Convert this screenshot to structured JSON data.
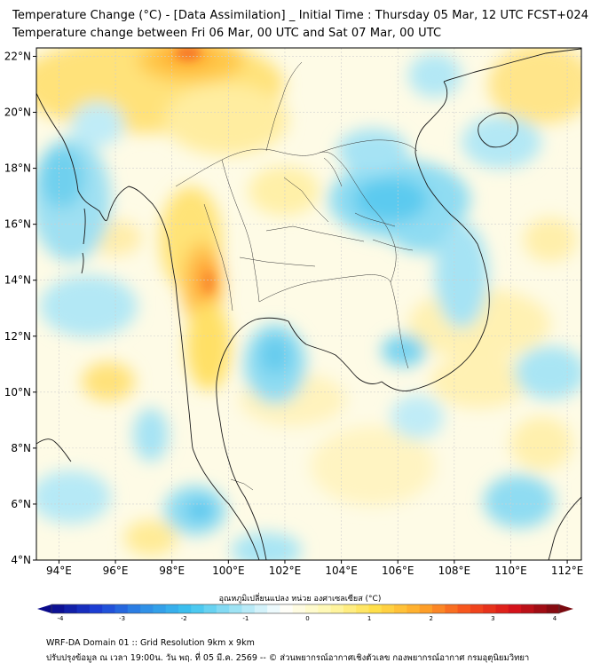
{
  "title": {
    "line1": "Temperature Change (°C) - [Data Assimilation] _ Initial Time : Thursday 05 Mar, 12 UTC FCST+024",
    "line2": "Temperature change between Fri 06 Mar, 00 UTC and Sat 07 Mar, 00 UTC"
  },
  "map": {
    "lat_labels": [
      "22°N",
      "20°N",
      "18°N",
      "16°N",
      "14°N",
      "12°N",
      "10°N",
      "8°N",
      "6°N",
      "4°N"
    ],
    "lat_values": [
      22,
      20,
      18,
      16,
      14,
      12,
      10,
      8,
      6,
      4
    ],
    "lon_labels": [
      "94°E",
      "96°E",
      "98°E",
      "100°E",
      "102°E",
      "104°E",
      "106°E",
      "108°E",
      "110°E",
      "112°E"
    ],
    "lon_values": [
      94,
      96,
      98,
      100,
      102,
      104,
      106,
      108,
      110,
      112
    ],
    "lat_range": [
      4,
      22.3
    ],
    "lon_range": [
      93.2,
      112.5
    ]
  },
  "colorbar": {
    "label": "อุณหภูมิเปลี่ยนแปลง หน่วย องศาเซลเซียส (°C)",
    "ticks": [
      "-4",
      "-3",
      "-2",
      "-1",
      "0",
      "1",
      "2",
      "3",
      "4"
    ],
    "min": -4,
    "max": 4,
    "colors": [
      "#0a0a8a",
      "#1d3fd6",
      "#2f8ee6",
      "#3cc4ef",
      "#9fe3f4",
      "#ffffff",
      "#fff8b0",
      "#ffe04a",
      "#ffa82a",
      "#f6501c",
      "#d8121a",
      "#7a0a10"
    ]
  },
  "footer": {
    "line1": "WRF-DA Domain 01 :: Grid Resolution 9km x 9km",
    "line2": "ปรับปรุงข้อมูล ณ เวลา 19:00น. วัน พฤ. ที่ 05 มี.ค. 2569 -- © ส่วนพยากรณ์อากาศเชิงตัวเลข กองพยากรณ์อากาศ กรมอุตุนิยมวิทยา"
  }
}
